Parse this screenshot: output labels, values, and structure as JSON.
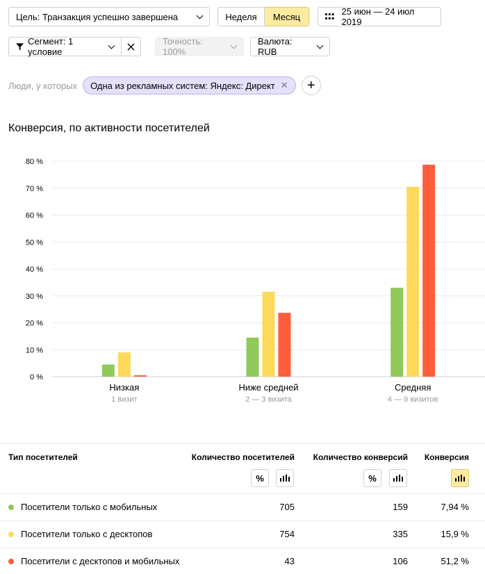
{
  "toolbar": {
    "goal_label": "Цель: Транзакция успешно завершена",
    "period_week": "Неделя",
    "period_month": "Месяц",
    "date_range": "25 июн — 24 июл 2019",
    "segment_label": "Сегмент: 1 условие",
    "accuracy_label": "Точность: 100%",
    "currency_label": "Валюта: RUB"
  },
  "people": {
    "label": "Люди, у которых",
    "chip": "Одна из рекламных систем: Яндекс: Директ"
  },
  "chart_title": "Конверсия, по активности посетителей",
  "colors": {
    "mobile": "#91c95a",
    "desktop": "#ffd95a",
    "both": "#ff5d3c",
    "accent": "#ffeba0"
  },
  "chart_data": {
    "type": "bar",
    "title": "Конверсия, по активности посетителей",
    "categories": [
      "Низкая",
      "Ниже средней",
      "Средняя"
    ],
    "sublabels": [
      "1 визит",
      "2 — 3 визита",
      "4 — 9 визитов"
    ],
    "series": [
      {
        "name": "Посетители только с мобильных",
        "color": "#91c95a",
        "values": [
          4.5,
          14.5,
          33
        ]
      },
      {
        "name": "Посетители только с десктопов",
        "color": "#ffd95a",
        "values": [
          9,
          31.5,
          70.5
        ]
      },
      {
        "name": "Посетители с десктопов и мобильных",
        "color": "#ff5d3c",
        "values": [
          0.5,
          23.7,
          78.7
        ]
      }
    ],
    "yticks": [
      "0 %",
      "10 %",
      "20 %",
      "30 %",
      "40 %",
      "50 %",
      "60 %",
      "70 %",
      "80 %"
    ],
    "ylim": [
      0,
      80
    ],
    "grid": true
  },
  "table": {
    "headers": {
      "type": "Тип посетителей",
      "visitors": "Количество посетителей",
      "conversions": "Количество конверсий",
      "conversion": "Конверсия"
    },
    "pct_icon": "%",
    "rows": [
      {
        "name": "Посетители только с мобильных",
        "visitors": "705",
        "conversions": "159",
        "conversion": "7,94 %",
        "color": "#91c95a"
      },
      {
        "name": "Посетители только с десктопов",
        "visitors": "754",
        "conversions": "335",
        "conversion": "15,9 %",
        "color": "#ffd95a"
      },
      {
        "name": "Посетители с десктопов и мобильных",
        "visitors": "43",
        "conversions": "106",
        "conversion": "51,2 %",
        "color": "#ff5d3c"
      }
    ]
  }
}
